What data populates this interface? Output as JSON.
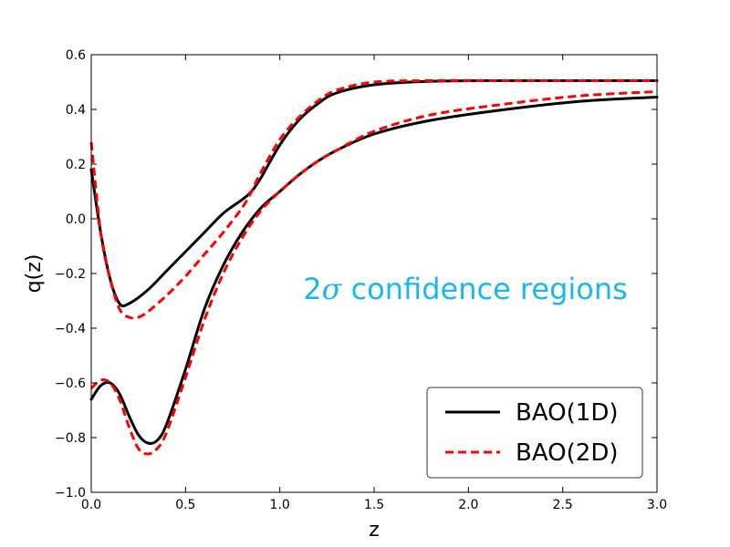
{
  "chart_data": {
    "type": "line",
    "xlabel": "z",
    "ylabel": "q(z)",
    "xlim": [
      0.0,
      3.0
    ],
    "ylim": [
      -1.0,
      0.6
    ],
    "xticks": [
      0.0,
      0.5,
      1.0,
      1.5,
      2.0,
      2.5,
      3.0
    ],
    "xtick_labels": [
      "0.0",
      "0.5",
      "1.0",
      "1.5",
      "2.0",
      "2.5",
      "3.0"
    ],
    "yticks": [
      -1.0,
      -0.8,
      -0.6,
      -0.4,
      -0.2,
      0.0,
      0.2,
      0.4,
      0.6
    ],
    "ytick_labels": [
      "−1.0",
      "−0.8",
      "−0.6",
      "−0.4",
      "−0.2",
      "0.0",
      "0.2",
      "0.4",
      "0.6"
    ],
    "grid": false,
    "legend_position": "bottom-right",
    "annotation": {
      "prefix": "2",
      "sigma": "σ",
      "rest": " confidence regions",
      "color": "#1ab8ea"
    },
    "series": [
      {
        "name": "BAO(1D)",
        "color": "#000000",
        "style": "solid",
        "upper": {
          "x": [
            0.0,
            0.05,
            0.1,
            0.15,
            0.2,
            0.3,
            0.4,
            0.5,
            0.6,
            0.7,
            0.8,
            0.85,
            0.9,
            1.0,
            1.1,
            1.2,
            1.3,
            1.5,
            1.8,
            2.2,
            2.6,
            3.0
          ],
          "y": [
            0.18,
            -0.05,
            -0.22,
            -0.31,
            -0.31,
            -0.26,
            -0.19,
            -0.12,
            -0.05,
            0.02,
            0.07,
            0.1,
            0.15,
            0.27,
            0.36,
            0.42,
            0.46,
            0.49,
            0.503,
            0.505,
            0.505,
            0.505
          ]
        },
        "lower": {
          "x": [
            0.0,
            0.05,
            0.1,
            0.15,
            0.2,
            0.25,
            0.3,
            0.35,
            0.4,
            0.5,
            0.6,
            0.7,
            0.8,
            0.9,
            1.0,
            1.1,
            1.2,
            1.3,
            1.5,
            1.8,
            2.2,
            2.6,
            3.0
          ],
          "y": [
            -0.66,
            -0.61,
            -0.6,
            -0.64,
            -0.72,
            -0.79,
            -0.82,
            -0.81,
            -0.75,
            -0.55,
            -0.33,
            -0.17,
            -0.05,
            0.04,
            0.1,
            0.16,
            0.21,
            0.25,
            0.31,
            0.36,
            0.4,
            0.43,
            0.445
          ]
        }
      },
      {
        "name": "BAO(2D)",
        "color": "#ff0000",
        "style": "dashed",
        "upper": {
          "x": [
            0.0,
            0.05,
            0.1,
            0.15,
            0.2,
            0.25,
            0.3,
            0.4,
            0.5,
            0.6,
            0.7,
            0.8,
            0.85,
            0.9,
            1.0,
            1.1,
            1.2,
            1.3,
            1.5,
            1.8,
            2.2,
            2.6,
            3.0
          ],
          "y": [
            0.28,
            -0.05,
            -0.22,
            -0.33,
            -0.36,
            -0.36,
            -0.34,
            -0.28,
            -0.21,
            -0.13,
            -0.05,
            0.04,
            0.1,
            0.17,
            0.29,
            0.37,
            0.43,
            0.47,
            0.5,
            0.505,
            0.505,
            0.505,
            0.505
          ]
        },
        "lower": {
          "x": [
            0.0,
            0.05,
            0.1,
            0.15,
            0.2,
            0.25,
            0.3,
            0.35,
            0.4,
            0.5,
            0.6,
            0.7,
            0.8,
            0.9,
            1.0,
            1.1,
            1.2,
            1.3,
            1.5,
            1.8,
            2.2,
            2.6,
            3.0
          ],
          "y": [
            -0.62,
            -0.59,
            -0.6,
            -0.66,
            -0.76,
            -0.84,
            -0.86,
            -0.84,
            -0.78,
            -0.58,
            -0.37,
            -0.2,
            -0.07,
            0.03,
            0.1,
            0.16,
            0.21,
            0.25,
            0.32,
            0.38,
            0.42,
            0.45,
            0.465
          ]
        }
      }
    ]
  }
}
